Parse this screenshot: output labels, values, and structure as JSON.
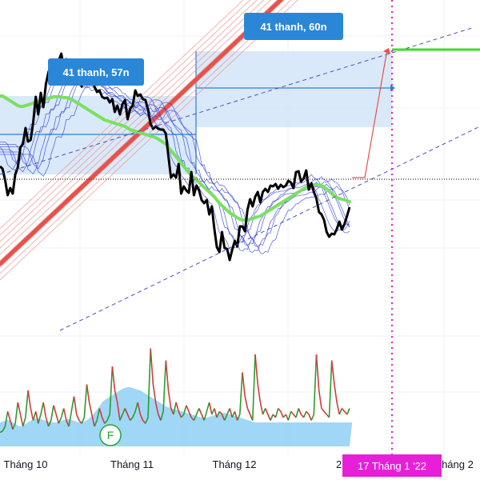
{
  "chart_data": {
    "type": "line",
    "x_tick_labels": [
      "Tháng 10",
      "Tháng 11",
      "Tháng 12",
      "2",
      "Tháng 2"
    ],
    "cursor_date_label": "17 Tháng 1 '22",
    "annotations": [
      {
        "label": "41 thanh, 57n"
      },
      {
        "label": "41 thanh, 60n"
      }
    ],
    "marker_label": "F",
    "grid": true,
    "series": [
      {
        "role": "price",
        "color": "#000000",
        "values": [
          272,
          269,
          255,
          236,
          245,
          238,
          262,
          271,
          296,
          300,
          320,
          303,
          305,
          327,
          359,
          337,
          364,
          346,
          375,
          390,
          397,
          402,
          403,
          404,
          413,
          396,
          406,
          395,
          401,
          384,
          378,
          386,
          372,
          385,
          376,
          383,
          381,
          372,
          365,
          367,
          359,
          357,
          358,
          352,
          356,
          340,
          348,
          337,
          350,
          355,
          331,
          344,
          348,
          367,
          360,
          362,
          356,
          355,
          343,
          325,
          319,
          322,
          319,
          318,
          318,
          313,
          285,
          258,
          262,
          258,
          275,
          238,
          247,
          242,
          239,
          265,
          236,
          248,
          242,
          230,
          226,
          230,
          212,
          222,
          194,
          171,
          165,
          190,
          170,
          169,
          155,
          168,
          179,
          172,
          197,
          197,
          191,
          218,
          231,
          222,
          234,
          240,
          227,
          240,
          244,
          240,
          248,
          247,
          250,
          244,
          249,
          246,
          248,
          254,
          252,
          245,
          265,
          266,
          253,
          257,
          267,
          243,
          251,
          240,
          232,
          215,
          212,
          205,
          190,
          184,
          188,
          187,
          194,
          203,
          193,
          200,
          210,
          221
        ]
      },
      {
        "role": "short-ma",
        "color": "#2f3fd8",
        "values": [
          300,
          297,
          288,
          278,
          275,
          272,
          278,
          285,
          300,
          310,
          322,
          323,
          322,
          330,
          345,
          345,
          350,
          350,
          360,
          370,
          378,
          384,
          388,
          391,
          396,
          395,
          395,
          392,
          390,
          385,
          380,
          378,
          374,
          376,
          374,
          376,
          376,
          373,
          369,
          368,
          364,
          361,
          360,
          357,
          357,
          352,
          351,
          346,
          348,
          350,
          345,
          345,
          347,
          354,
          356,
          357,
          356,
          355,
          350,
          342,
          335,
          330,
          326,
          323,
          320,
          318,
          305,
          288,
          281,
          276,
          277,
          265,
          261,
          256,
          252,
          256,
          251,
          251,
          249,
          244,
          239,
          237,
          231,
          229,
          219,
          205,
          193,
          192,
          186,
          181,
          173,
          172,
          175,
          174,
          183,
          189,
          190,
          201,
          211,
          215,
          222,
          228,
          228,
          232,
          236,
          237,
          240,
          242,
          244,
          244,
          245,
          245,
          246,
          248,
          249,
          248,
          252,
          255,
          255,
          256,
          259,
          255,
          254,
          250,
          244,
          235,
          228,
          220,
          212,
          204,
          199,
          195,
          195,
          197,
          196,
          197,
          201,
          208
        ]
      },
      {
        "role": "trend-ma",
        "color": "#7be060",
        "values": [
          360,
          360,
          358,
          356,
          354,
          352,
          350,
          348,
          347,
          347,
          348,
          349,
          350,
          351,
          352,
          353,
          354,
          355,
          356,
          357,
          358,
          359,
          359,
          359,
          359,
          358,
          358,
          357,
          356,
          354,
          352,
          350,
          348,
          346,
          344,
          342,
          340,
          338,
          336,
          334,
          332,
          330,
          329,
          328,
          327,
          326,
          325,
          324,
          323,
          322,
          320,
          318,
          317,
          316,
          315,
          314,
          313,
          312,
          311,
          310,
          309,
          308,
          306,
          304,
          302,
          300,
          296,
          292,
          288,
          284,
          280,
          276,
          272,
          268,
          264,
          261,
          258,
          255,
          252,
          249,
          246,
          243,
          240,
          237,
          234,
          230,
          226,
          223,
          220,
          217,
          214,
          212,
          210,
          208,
          206,
          205,
          205,
          205,
          206,
          207,
          208,
          209,
          210,
          212,
          214,
          216,
          218,
          220,
          222,
          224,
          226,
          228,
          230,
          232,
          234,
          236,
          238,
          240,
          242,
          244,
          246,
          247,
          248,
          249,
          249,
          249,
          248,
          246,
          244,
          241,
          238,
          235,
          233,
          232,
          231,
          230,
          229,
          228
        ]
      },
      {
        "role": "long-ma",
        "color": "#e8514a",
        "values": [
          150,
          153,
          156,
          159,
          162,
          165,
          168,
          171,
          174,
          177,
          180,
          183,
          186,
          189,
          192,
          195,
          198,
          201,
          204,
          207,
          210,
          213,
          216,
          219,
          222,
          225,
          228,
          231,
          234,
          237,
          240,
          243,
          246,
          249,
          252,
          255,
          258,
          261,
          264,
          267,
          270,
          273,
          276,
          279,
          282,
          285,
          288,
          291,
          294,
          297,
          300,
          303,
          306,
          309,
          312,
          315,
          318,
          321,
          324,
          327,
          330,
          333,
          336,
          339,
          342,
          345,
          348,
          351,
          354,
          357,
          360,
          363,
          366,
          369,
          372,
          375,
          378,
          381,
          384,
          387,
          390,
          393,
          396,
          399,
          402,
          405,
          408,
          411,
          414,
          417,
          420,
          423,
          426,
          429,
          432,
          435,
          438,
          441,
          444,
          447,
          450,
          453,
          456,
          459,
          462,
          465,
          468,
          471,
          474,
          477,
          480,
          483,
          486,
          489,
          492,
          495,
          498,
          501,
          504,
          507,
          510,
          513,
          516,
          519,
          522,
          525,
          528,
          531,
          534,
          537,
          540,
          543,
          546,
          549,
          552,
          555,
          558,
          561
        ]
      },
      {
        "role": "oscillator",
        "color": "#2a9d2a",
        "values": [
          10,
          12,
          20,
          45,
          30,
          15,
          25,
          60,
          40,
          20,
          35,
          80,
          50,
          30,
          45,
          25,
          40,
          60,
          35,
          20,
          30,
          55,
          40,
          25,
          35,
          50,
          30,
          20,
          45,
          70,
          40,
          30,
          25,
          35,
          90,
          60,
          40,
          20,
          30,
          50,
          35,
          25,
          30,
          40,
          120,
          80,
          60,
          30,
          40,
          50,
          40,
          30,
          35,
          45,
          60,
          40,
          30,
          25,
          35,
          150,
          90,
          60,
          40,
          30,
          45,
          130,
          80,
          50,
          40,
          60,
          45,
          35,
          40,
          55,
          45,
          35,
          30,
          40,
          50,
          40,
          30,
          45,
          60,
          40,
          50,
          35,
          45,
          40,
          30,
          40,
          50,
          35,
          45,
          30,
          40,
          110,
          70,
          50,
          40,
          30,
          140,
          90,
          60,
          40,
          50,
          40,
          30,
          40,
          35,
          50,
          45,
          35,
          40,
          30,
          45,
          40,
          35,
          50,
          40,
          35,
          45,
          40,
          30,
          40,
          140,
          80,
          50,
          45,
          40,
          35,
          130,
          90,
          60,
          40,
          50,
          45,
          40,
          50
        ]
      },
      {
        "role": "volume-area",
        "color": "#8fd0f5",
        "values": [
          30,
          31,
          32,
          33,
          32,
          30,
          28,
          26,
          25,
          26,
          28,
          30,
          32,
          34,
          35,
          35,
          34,
          33,
          32,
          31,
          30,
          30,
          30,
          31,
          32,
          33,
          34,
          34,
          33,
          32,
          31,
          30,
          30,
          31,
          33,
          35,
          38,
          42,
          46,
          50,
          55,
          58,
          60,
          62,
          64,
          66,
          68,
          70,
          72,
          73,
          74,
          74,
          73,
          72,
          71,
          70,
          68,
          66,
          64,
          62,
          60,
          58,
          56,
          54,
          52,
          50,
          49,
          48,
          47,
          46,
          45,
          44,
          43,
          42,
          41,
          40,
          39,
          38,
          37,
          36,
          36,
          36,
          37,
          38,
          39,
          40,
          41,
          42,
          42,
          41,
          40,
          39,
          38,
          37,
          36,
          35,
          34,
          33,
          32,
          31,
          30,
          30,
          30,
          30,
          30,
          30,
          30,
          30,
          30,
          30,
          30,
          30,
          30,
          30,
          30,
          30,
          30,
          30,
          30,
          30,
          30,
          30,
          30,
          30,
          30,
          30,
          30,
          30,
          30,
          30,
          30,
          30,
          30,
          30,
          30,
          30,
          30,
          30,
          30
        ]
      }
    ]
  }
}
